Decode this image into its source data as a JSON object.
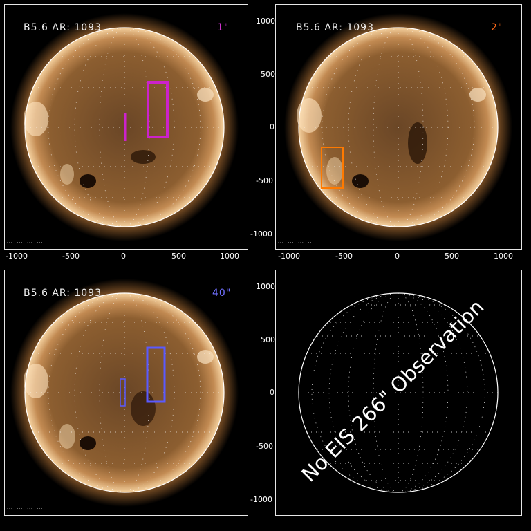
{
  "panels": [
    {
      "id": "p1",
      "header": "B5.6 AR: 1093",
      "resolution": "1\"",
      "res_color": "#cc33cc",
      "footer": "...  ...  ...  ...",
      "boxes": [
        {
          "color": "#cc22cc"
        },
        {
          "color": "#cc22cc"
        }
      ]
    },
    {
      "id": "p2",
      "header": "B5.6 AR: 1093",
      "resolution": "2\"",
      "res_color": "#ff6a1a",
      "footer": "...  ...  ...  ...",
      "boxes": [
        {
          "color": "#ff7a00"
        }
      ]
    },
    {
      "id": "p3",
      "header": "B5.6 AR: 1093",
      "resolution": "40\"",
      "res_color": "#7070ff",
      "footer": "...  ...  ...  ...",
      "boxes": [
        {
          "color": "#5a5aff"
        },
        {
          "color": "#5a5aff"
        }
      ]
    },
    {
      "id": "p4",
      "message": "No EIS 266\" Observation"
    }
  ],
  "axes": {
    "y_ticks_right": [
      "1000",
      "500",
      "0",
      "-500",
      "-1000"
    ],
    "x_ticks_bottom": [
      "-1000",
      "-500",
      "0",
      "500",
      "1000"
    ]
  },
  "colors": {
    "sun_core": "#8a5a2a",
    "corona": "#f2c994",
    "limb_outline": "#ffffff",
    "background": "#000000"
  }
}
